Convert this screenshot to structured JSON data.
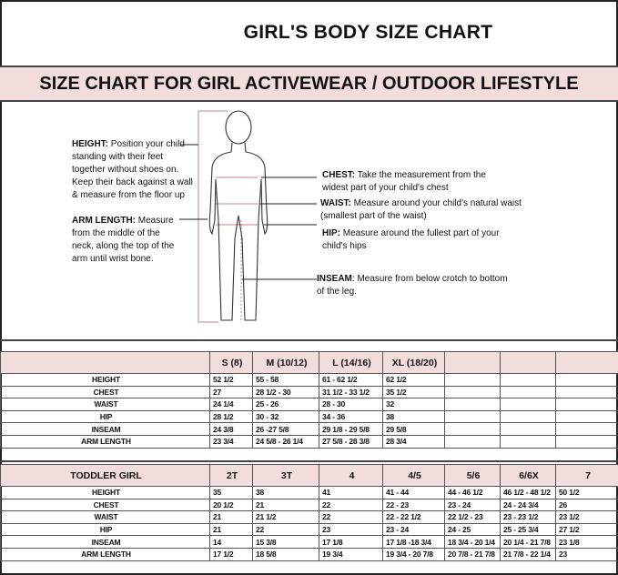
{
  "title": "GIRL'S BODY SIZE CHART",
  "subtitle": "SIZE CHART FOR GIRL ACTIVEWEAR / OUTDOOR LIFESTYLE",
  "notes": {
    "height": {
      "label": "HEIGHT:",
      "text": "Position your child standing with their feet together without shoes on. Keep their back against a wall & measure from the floor up"
    },
    "arm": {
      "label": "ARM LENGTH:",
      "text": "Measure from the middle of the neck, along the top of the arm until wrist bone."
    },
    "chest": {
      "label": "CHEST:",
      "text": "Take the measurement from the widest part of your child's chest"
    },
    "waist": {
      "label": "WAIST:",
      "text": "Measure around your child's natural waist (smallest part of the waist)"
    },
    "hip": {
      "label": "HIP:",
      "text": "Measure around the fullest part of your child's hips"
    },
    "inseam": {
      "label": "INSEAM",
      "text": ": Measure from below crotch to bottom of the leg."
    }
  },
  "girl_table": {
    "header": [
      "",
      "S (8)",
      "M (10/12)",
      "L (14/16)",
      "XL (18/20)",
      "",
      "",
      ""
    ],
    "rows": [
      [
        "HEIGHT",
        "52 1/2",
        "55 - 58",
        "61 - 62 1/2",
        "62 1/2",
        "",
        "",
        ""
      ],
      [
        "CHEST",
        "27",
        "28 1/2 - 30",
        "31 1/2 - 33 1/2",
        "35 1/2",
        "",
        "",
        ""
      ],
      [
        "WAIST",
        "24 1/4",
        "25 - 26",
        "28 - 30",
        "32",
        "",
        "",
        ""
      ],
      [
        "HIP",
        "28 1/2",
        "30 - 32",
        "34 - 36",
        "38",
        "",
        "",
        ""
      ],
      [
        "INSEAM",
        "24 3/8",
        "26 -27 5/8",
        "29 1/8 - 29 5/8",
        "29 5/8",
        "",
        "",
        ""
      ],
      [
        "ARM LENGTH",
        "23 3/4",
        "24 5/8 - 26 1/4",
        "27 5/8 - 28 3/8",
        "28 3/4",
        "",
        "",
        ""
      ]
    ]
  },
  "toddler_table": {
    "header": [
      "TODDLER GIRL",
      "2T",
      "3T",
      "4",
      "4/5",
      "5/6",
      "6/6X",
      "7"
    ],
    "rows": [
      [
        "HEIGHT",
        "35",
        "38",
        "41",
        "41 - 44",
        "44 - 46 1/2",
        "46 1/2 - 48 1/2",
        "50 1/2"
      ],
      [
        "CHEST",
        "20 1/2",
        "21",
        "22",
        "22 - 23",
        "23 - 24",
        "24 - 24 3/4",
        "26"
      ],
      [
        "WAIST",
        "21",
        "21 1/2",
        "22",
        "22 - 22 1/2",
        "22 1/2 - 23",
        "23 - 23 1/2",
        "23 1/2"
      ],
      [
        "HIP",
        "21",
        "22",
        "23",
        "23 - 24",
        "24 - 25",
        "25 - 25 3/4",
        "27 1/2"
      ],
      [
        "INSEAM",
        "14",
        "15 3/8",
        "17 1/8",
        "17 1/8 -18 3/4",
        "18 3/4 - 20 1/4",
        "20 1/4 - 21 7/8",
        "23 1/8"
      ],
      [
        "ARM LENGTH",
        "17 1/2",
        "18 5/8",
        "19 3/4",
        "19 3/4 - 20 7/8",
        "20 7/8 - 21 7/8",
        "21 7/8 - 22 1/4",
        "23"
      ]
    ]
  },
  "colors": {
    "header_pink": "#f3dcdc",
    "measure_line": "#c98080"
  }
}
